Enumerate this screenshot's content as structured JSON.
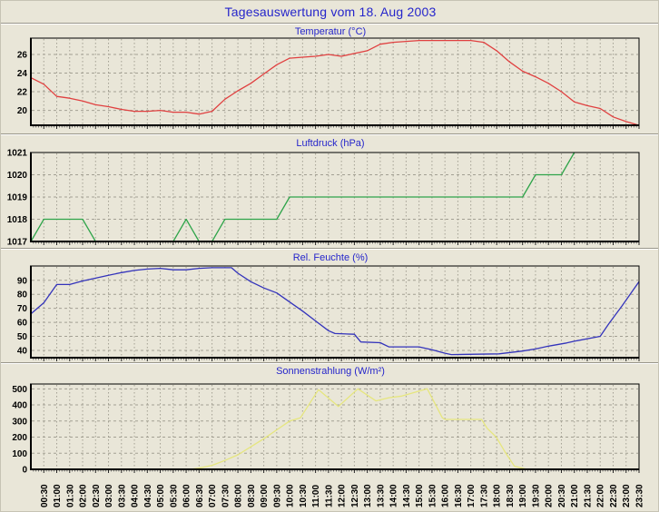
{
  "title": "Tagesauswertung vom 18. Aug 2003",
  "colors": {
    "background": "#e9e6d8",
    "title_text": "#2525cb",
    "grid": "#a3a093",
    "frame": "#000000",
    "tick": "#333333",
    "temperature_line": "#e04040",
    "pressure_line": "#2fa44a",
    "humidity_line": "#3333bb",
    "radiation_line": "#e6e67e"
  },
  "xaxis": {
    "start": "00:00",
    "end": "23:30",
    "total_minutes": 1410,
    "tick_step_minutes": 30,
    "tick_labels": [
      "00:30",
      "01:00",
      "01:30",
      "02:00",
      "02:30",
      "03:00",
      "03:30",
      "04:00",
      "04:30",
      "05:00",
      "05:30",
      "06:00",
      "06:30",
      "07:00",
      "07:30",
      "08:00",
      "08:30",
      "09:00",
      "09:30",
      "10:00",
      "10:30",
      "11:00",
      "11:30",
      "12:00",
      "12:30",
      "13:00",
      "13:30",
      "14:00",
      "14:30",
      "15:00",
      "15:30",
      "16:00",
      "16:30",
      "17:00",
      "17:30",
      "18:00",
      "18:30",
      "19:00",
      "19:30",
      "20:00",
      "20:30",
      "21:00",
      "21:30",
      "22:00",
      "22:30",
      "23:00",
      "23:30"
    ]
  },
  "chart_data": [
    {
      "type": "line",
      "title": "Temperatur (°C)",
      "ylabel": "°C",
      "ylim": [
        18.4,
        27.75
      ],
      "yticks": [
        20,
        22,
        24,
        26
      ],
      "grid": true,
      "line_color": "#e04040",
      "points": [
        [
          0,
          23.5
        ],
        [
          30,
          22.8
        ],
        [
          60,
          21.5
        ],
        [
          90,
          21.3
        ],
        [
          120,
          21.0
        ],
        [
          150,
          20.6
        ],
        [
          180,
          20.4
        ],
        [
          210,
          20.1
        ],
        [
          240,
          19.9
        ],
        [
          270,
          19.9
        ],
        [
          300,
          20.0
        ],
        [
          330,
          19.8
        ],
        [
          360,
          19.8
        ],
        [
          390,
          19.6
        ],
        [
          420,
          19.9
        ],
        [
          450,
          21.2
        ],
        [
          480,
          22.1
        ],
        [
          510,
          22.9
        ],
        [
          540,
          23.9
        ],
        [
          570,
          24.9
        ],
        [
          600,
          25.6
        ],
        [
          630,
          25.7
        ],
        [
          660,
          25.8
        ],
        [
          690,
          26.0
        ],
        [
          720,
          25.8
        ],
        [
          750,
          26.1
        ],
        [
          780,
          26.4
        ],
        [
          810,
          27.1
        ],
        [
          840,
          27.3
        ],
        [
          870,
          27.4
        ],
        [
          900,
          27.5
        ],
        [
          930,
          27.5
        ],
        [
          960,
          27.5
        ],
        [
          990,
          27.5
        ],
        [
          1020,
          27.5
        ],
        [
          1050,
          27.3
        ],
        [
          1080,
          26.4
        ],
        [
          1110,
          25.2
        ],
        [
          1140,
          24.2
        ],
        [
          1170,
          23.6
        ],
        [
          1200,
          22.9
        ],
        [
          1230,
          22.0
        ],
        [
          1260,
          20.9
        ],
        [
          1290,
          20.5
        ],
        [
          1320,
          20.2
        ],
        [
          1350,
          19.3
        ],
        [
          1380,
          18.8
        ],
        [
          1410,
          18.4
        ]
      ]
    },
    {
      "type": "line",
      "title": "Luftdruck (hPa)",
      "ylabel": "hPa",
      "ylim": [
        1017,
        1021
      ],
      "yticks": [
        1017,
        1018,
        1019,
        1020,
        1021
      ],
      "grid": true,
      "line_color": "#2fa44a",
      "points": [
        [
          0,
          1017
        ],
        [
          30,
          1018
        ],
        [
          120,
          1018
        ],
        [
          150,
          1017
        ],
        [
          330,
          1017
        ],
        [
          360,
          1018
        ],
        [
          390,
          1017
        ],
        [
          420,
          1017
        ],
        [
          450,
          1018
        ],
        [
          570,
          1018
        ],
        [
          600,
          1019
        ],
        [
          1140,
          1019
        ],
        [
          1170,
          1020
        ],
        [
          1230,
          1020
        ],
        [
          1260,
          1021
        ]
      ]
    },
    {
      "type": "line",
      "title": "Rel. Feuchte (%)",
      "ylabel": "%",
      "ylim": [
        34.8,
        100.2
      ],
      "yticks": [
        40,
        50,
        60,
        70,
        80,
        90
      ],
      "grid": true,
      "line_color": "#3333bb",
      "points": [
        [
          0,
          66
        ],
        [
          30,
          74
        ],
        [
          60,
          87
        ],
        [
          90,
          87
        ],
        [
          120,
          89.5
        ],
        [
          150,
          91.5
        ],
        [
          180,
          93.5
        ],
        [
          210,
          95.5
        ],
        [
          240,
          97
        ],
        [
          270,
          98
        ],
        [
          300,
          98.5
        ],
        [
          330,
          97.5
        ],
        [
          360,
          97.5
        ],
        [
          390,
          98.5
        ],
        [
          420,
          99
        ],
        [
          465,
          99
        ],
        [
          480,
          95
        ],
        [
          510,
          89
        ],
        [
          540,
          84.5
        ],
        [
          570,
          81
        ],
        [
          600,
          74.5
        ],
        [
          630,
          68
        ],
        [
          660,
          61
        ],
        [
          690,
          54
        ],
        [
          705,
          52
        ],
        [
          750,
          51.5
        ],
        [
          765,
          46
        ],
        [
          810,
          45.5
        ],
        [
          830,
          42.5
        ],
        [
          900,
          42.5
        ],
        [
          930,
          40.5
        ],
        [
          960,
          38
        ],
        [
          975,
          37
        ],
        [
          1085,
          37.5
        ],
        [
          1140,
          39.5
        ],
        [
          1170,
          41
        ],
        [
          1200,
          43
        ],
        [
          1242,
          45.3
        ],
        [
          1260,
          46.5
        ],
        [
          1320,
          50
        ],
        [
          1340,
          59
        ],
        [
          1371,
          72
        ],
        [
          1410,
          89
        ]
      ]
    },
    {
      "type": "line",
      "title": "Sonnenstrahlung (W/m²)",
      "ylabel": "W/m²",
      "ylim": [
        0,
        530
      ],
      "yticks": [
        0,
        100,
        200,
        300,
        400,
        500
      ],
      "grid": true,
      "line_color": "#e6e67e",
      "points": [
        [
          0,
          0
        ],
        [
          360,
          0
        ],
        [
          375,
          2
        ],
        [
          390,
          8
        ],
        [
          420,
          25
        ],
        [
          450,
          55
        ],
        [
          480,
          90
        ],
        [
          510,
          140
        ],
        [
          540,
          190
        ],
        [
          570,
          245
        ],
        [
          600,
          300
        ],
        [
          625,
          320
        ],
        [
          667,
          495
        ],
        [
          713,
          390
        ],
        [
          758,
          500
        ],
        [
          800,
          425
        ],
        [
          830,
          445
        ],
        [
          860,
          455
        ],
        [
          919,
          500
        ],
        [
          954,
          320
        ],
        [
          960,
          310
        ],
        [
          1045,
          310
        ],
        [
          1058,
          255
        ],
        [
          1079,
          200
        ],
        [
          1100,
          105
        ],
        [
          1121,
          20
        ],
        [
          1150,
          0
        ],
        [
          1410,
          0
        ]
      ]
    }
  ]
}
